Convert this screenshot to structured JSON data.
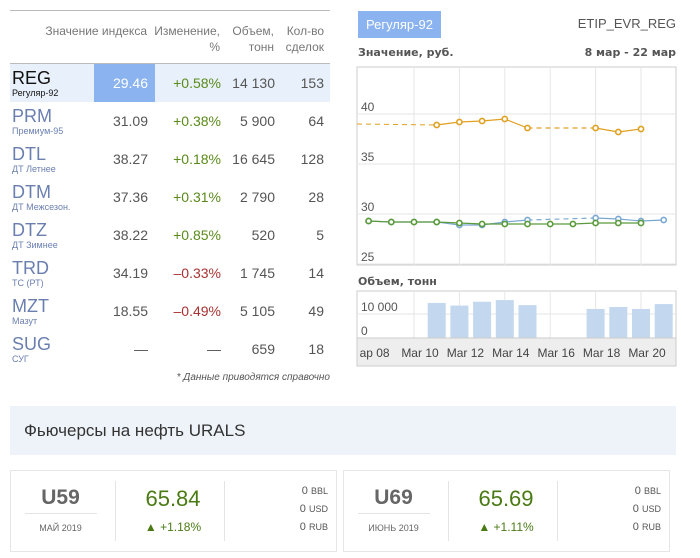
{
  "table": {
    "headers": [
      "Значение индекса",
      "Изменение, %",
      "Объем, тонн",
      "Кол-во сделок"
    ],
    "rows": [
      {
        "code": "REG",
        "name": "Регуляр-92",
        "value": "29.46",
        "change": "+0.58%",
        "volume": "14 130",
        "deals": "153",
        "dir": "pos",
        "selected": true
      },
      {
        "code": "PRM",
        "name": "Премиум-95",
        "value": "31.09",
        "change": "+0.38%",
        "volume": "5 900",
        "deals": "64",
        "dir": "pos"
      },
      {
        "code": "DTL",
        "name": "ДТ Летнее",
        "value": "38.27",
        "change": "+0.18%",
        "volume": "16 645",
        "deals": "128",
        "dir": "pos"
      },
      {
        "code": "DTM",
        "name": "ДТ Межсезон.",
        "value": "37.36",
        "change": "+0.31%",
        "volume": "2 790",
        "deals": "28",
        "dir": "pos"
      },
      {
        "code": "DTZ",
        "name": "ДТ Зимнее",
        "value": "38.22",
        "change": "+0.85%",
        "volume": "520",
        "deals": "5",
        "dir": "pos"
      },
      {
        "code": "TRD",
        "name": "ТС (РТ)",
        "value": "34.19",
        "change": "–0.33%",
        "volume": "1 745",
        "deals": "14",
        "dir": "neg"
      },
      {
        "code": "MZT",
        "name": "Мазут",
        "value": "18.55",
        "change": "–0.49%",
        "volume": "5 105",
        "deals": "49",
        "dir": "neg"
      },
      {
        "code": "SUG",
        "name": "СУГ",
        "value": "—",
        "change": "—",
        "volume": "659",
        "deals": "18",
        "dir": ""
      }
    ],
    "note": "* Данные приводятся справочно"
  },
  "chart_panel": {
    "badge": "Регуляр-92",
    "ticker": "ETIP_EVR_REG",
    "value_label": "Значение, руб.",
    "range": "8 мар - 22 мар",
    "volume_label": "Объем, тонн"
  },
  "chart_data": [
    {
      "type": "line",
      "title": "Значение, руб.",
      "ylim": [
        25,
        45
      ],
      "yticks": [
        25,
        30,
        35,
        40
      ],
      "x_days": [
        8,
        9,
        10,
        11,
        12,
        13,
        14,
        15,
        16,
        17,
        18,
        19,
        20,
        21
      ],
      "series": [
        {
          "name": "orange",
          "color": "#e0a020",
          "values": [
            null,
            null,
            null,
            38.9,
            39.2,
            39.3,
            39.5,
            38.6,
            null,
            null,
            38.6,
            38.2,
            38.5,
            null
          ],
          "start": 39.0
        },
        {
          "name": "blue",
          "color": "#7aa8d0",
          "values": [
            29.3,
            29.2,
            29.2,
            29.2,
            28.9,
            28.9,
            29.2,
            29.4,
            null,
            null,
            29.6,
            29.5,
            29.3,
            29.4
          ]
        },
        {
          "name": "green",
          "color": "#5a9a3a",
          "values": [
            29.3,
            29.2,
            29.2,
            29.2,
            29.1,
            29.0,
            29.0,
            29.0,
            29.0,
            29.0,
            29.1,
            29.1,
            29.1,
            null
          ]
        }
      ]
    },
    {
      "type": "bar",
      "title": "Объем, тонн",
      "yticks": [
        {
          "v": 0,
          "label": "0"
        },
        {
          "v": 10000,
          "label": "10 000"
        }
      ],
      "x_days": [
        8,
        9,
        10,
        11,
        12,
        13,
        14,
        15,
        16,
        17,
        18,
        19,
        20,
        21
      ],
      "values": [
        0,
        0,
        0,
        14600,
        13500,
        15100,
        15800,
        13700,
        0,
        0,
        12100,
        12900,
        12100,
        14130
      ],
      "color": "#c3d7ee",
      "xticks": [
        {
          "d": 8,
          "label": "ар 08"
        },
        {
          "d": 10,
          "label": "Mar 10"
        },
        {
          "d": 12,
          "label": "Mar 12"
        },
        {
          "d": 14,
          "label": "Mar 14"
        },
        {
          "d": 16,
          "label": "Mar 16"
        },
        {
          "d": 18,
          "label": "Mar 18"
        },
        {
          "d": 20,
          "label": "Mar 20"
        }
      ]
    }
  ],
  "futures": {
    "title": "Фьючерсы на нефть URALS",
    "cards": [
      {
        "code": "U59",
        "month": "МАЙ 2019",
        "price": "65.84",
        "change": "▲ +1.18%",
        "bbl": "0",
        "usd": "0",
        "rub": "0"
      },
      {
        "code": "U69",
        "month": "ИЮНЬ 2019",
        "price": "65.69",
        "change": "▲ +1.11%",
        "bbl": "0",
        "usd": "0",
        "rub": "0"
      }
    ],
    "units": [
      "BBL",
      "USD",
      "RUB"
    ]
  }
}
